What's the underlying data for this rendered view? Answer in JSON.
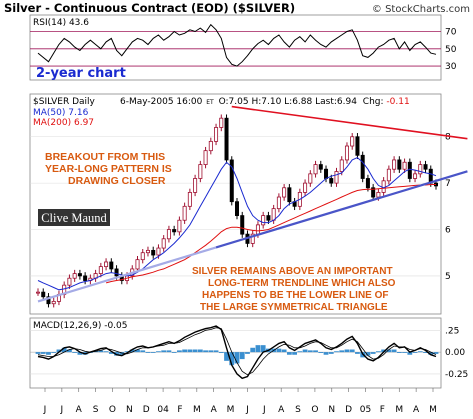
{
  "chart_data": {
    "type": "line",
    "title": "Silver - Continuous Contract (EOD) ($SILVER)",
    "watermark": "© StockCharts.com",
    "period_label": "2-year chart",
    "price_panel": {
      "symbol_label": "$SILVER Daily",
      "date": "6-May-2005 16:00",
      "unit": "ET",
      "ohlc": "O:7.05 H:7.10 L:6.88 Last:6.94",
      "chg_label": "Chg:",
      "chg_value": "-0.11",
      "ma50_label": "MA(50) 7.16",
      "ma200_label": "MA(200) 6.97",
      "yticks": [
        5,
        6,
        7,
        8
      ],
      "ylim": [
        4.2,
        8.9
      ],
      "closes": [
        4.65,
        4.55,
        4.4,
        4.45,
        4.6,
        4.8,
        4.95,
        5.05,
        5.0,
        4.9,
        4.95,
        5.05,
        5.2,
        5.3,
        5.15,
        5.0,
        4.9,
        5.0,
        5.15,
        5.35,
        5.5,
        5.55,
        5.45,
        5.6,
        5.8,
        6.0,
        5.95,
        6.2,
        6.5,
        6.8,
        7.1,
        7.4,
        7.7,
        7.9,
        8.2,
        8.4,
        7.5,
        6.6,
        6.3,
        5.9,
        5.7,
        5.9,
        6.1,
        6.3,
        6.2,
        6.45,
        6.7,
        6.9,
        6.6,
        6.5,
        6.8,
        7.0,
        7.2,
        7.4,
        7.3,
        7.1,
        7.0,
        7.25,
        7.5,
        7.8,
        8.0,
        7.6,
        7.1,
        6.9,
        6.7,
        6.8,
        7.05,
        7.3,
        7.5,
        7.3,
        7.45,
        7.1,
        7.2,
        7.4,
        7.3,
        7.0,
        6.94
      ],
      "ma50": [
        4.9,
        4.85,
        4.8,
        4.75,
        4.7,
        4.72,
        4.75,
        4.8,
        4.85,
        4.88,
        4.9,
        4.95,
        5.0,
        5.05,
        5.07,
        5.05,
        5.02,
        5.0,
        5.02,
        5.08,
        5.15,
        5.25,
        5.35,
        5.42,
        5.5,
        5.6,
        5.7,
        5.82,
        5.95,
        6.1,
        6.3,
        6.5,
        6.7,
        6.9,
        7.1,
        7.3,
        7.45,
        7.35,
        7.1,
        6.8,
        6.5,
        6.3,
        6.2,
        6.15,
        6.15,
        6.2,
        6.3,
        6.45,
        6.55,
        6.6,
        6.65,
        6.72,
        6.8,
        6.9,
        7.0,
        7.1,
        7.15,
        7.18,
        7.22,
        7.35,
        7.5,
        7.55,
        7.45,
        7.3,
        7.1,
        6.95,
        6.9,
        6.95,
        7.05,
        7.15,
        7.25,
        7.3,
        7.28,
        7.25,
        7.22,
        7.2,
        7.16
      ],
      "ma200": [
        null,
        null,
        null,
        null,
        null,
        null,
        null,
        null,
        null,
        null,
        null,
        null,
        null,
        4.85,
        4.88,
        4.9,
        4.92,
        4.95,
        4.98,
        5.0,
        5.02,
        5.05,
        5.08,
        5.12,
        5.15,
        5.2,
        5.25,
        5.3,
        5.35,
        5.42,
        5.5,
        5.58,
        5.66,
        5.75,
        5.85,
        5.95,
        6.02,
        6.05,
        6.05,
        6.03,
        6.0,
        5.98,
        5.97,
        5.98,
        6.0,
        6.05,
        6.1,
        6.15,
        6.2,
        6.25,
        6.3,
        6.35,
        6.4,
        6.45,
        6.5,
        6.55,
        6.6,
        6.65,
        6.7,
        6.75,
        6.8,
        6.84,
        6.86,
        6.87,
        6.87,
        6.88,
        6.89,
        6.9,
        6.91,
        6.92,
        6.93,
        6.94,
        6.95,
        6.96,
        6.96,
        6.97,
        6.97
      ],
      "trend_lower": [
        [
          0,
          4.45
        ],
        [
          76,
          7.05
        ]
      ],
      "trend_lower_light_end": 34,
      "trend_upper": [
        [
          37,
          8.65
        ],
        [
          76,
          8.05
        ]
      ],
      "annotations": [
        [
          "BREAKOUT FROM THIS",
          "YEAR-LONG PATTERN IS",
          "DRAWING CLOSER"
        ],
        [
          "SILVER REMAINS ABOVE AN IMPORTANT",
          "LONG-TERM TRENDLINE WHICH ALSO",
          "HAPPENS TO BE THE LOWER LINE OF",
          "THE LARGE SYMMETRICAL TRIANGLE"
        ]
      ],
      "signature": "Clive Maund"
    },
    "rsi_panel": {
      "label": "RSI(14) 43.6",
      "yticks": [
        30,
        50,
        70
      ],
      "ylim": [
        15,
        88
      ],
      "values": [
        45,
        40,
        35,
        45,
        55,
        62,
        58,
        52,
        48,
        55,
        60,
        55,
        50,
        58,
        62,
        48,
        42,
        50,
        58,
        62,
        60,
        55,
        62,
        66,
        60,
        64,
        70,
        66,
        68,
        72,
        70,
        74,
        69,
        78,
        72,
        62,
        40,
        32,
        30,
        35,
        42,
        50,
        56,
        60,
        55,
        62,
        66,
        58,
        52,
        60,
        64,
        58,
        66,
        60,
        55,
        52,
        58,
        62,
        66,
        70,
        72,
        60,
        42,
        40,
        45,
        52,
        55,
        60,
        62,
        50,
        58,
        48,
        55,
        58,
        52,
        45,
        43.6
      ]
    },
    "macd_panel": {
      "label": "MACD(12,26,9) -0.05",
      "yticks": [
        ".25",
        "0.00",
        "-0.25"
      ],
      "ylim": [
        -0.4,
        0.38
      ],
      "macd": [
        -0.05,
        -0.06,
        -0.08,
        -0.05,
        0.0,
        0.05,
        0.06,
        0.04,
        0.0,
        -0.02,
        0.0,
        0.02,
        0.04,
        0.05,
        0.01,
        -0.03,
        -0.04,
        -0.01,
        0.03,
        0.06,
        0.07,
        0.05,
        0.06,
        0.08,
        0.1,
        0.12,
        0.1,
        0.13,
        0.17,
        0.2,
        0.23,
        0.25,
        0.27,
        0.28,
        0.3,
        0.26,
        0.05,
        -0.15,
        -0.25,
        -0.3,
        -0.28,
        -0.18,
        -0.08,
        0.0,
        0.02,
        0.06,
        0.1,
        0.12,
        0.05,
        0.02,
        0.06,
        0.1,
        0.12,
        0.14,
        0.1,
        0.05,
        0.03,
        0.06,
        0.1,
        0.15,
        0.18,
        0.1,
        -0.02,
        -0.08,
        -0.1,
        -0.06,
        0.0,
        0.06,
        0.1,
        0.05,
        0.06,
        0.0,
        0.02,
        0.05,
        0.02,
        -0.03,
        -0.05
      ],
      "signal": [
        -0.03,
        -0.04,
        -0.05,
        -0.05,
        -0.03,
        0.0,
        0.03,
        0.04,
        0.03,
        0.01,
        0.0,
        0.01,
        0.02,
        0.04,
        0.03,
        0.01,
        -0.01,
        -0.02,
        0.0,
        0.03,
        0.05,
        0.05,
        0.06,
        0.07,
        0.08,
        0.1,
        0.1,
        0.11,
        0.14,
        0.17,
        0.2,
        0.22,
        0.25,
        0.26,
        0.28,
        0.27,
        0.15,
        0.0,
        -0.12,
        -0.22,
        -0.26,
        -0.23,
        -0.16,
        -0.08,
        -0.02,
        0.02,
        0.06,
        0.09,
        0.08,
        0.05,
        0.05,
        0.07,
        0.1,
        0.12,
        0.11,
        0.08,
        0.05,
        0.05,
        0.08,
        0.12,
        0.15,
        0.12,
        0.04,
        -0.04,
        -0.08,
        -0.07,
        -0.03,
        0.03,
        0.07,
        0.06,
        0.06,
        0.03,
        0.02,
        0.04,
        0.03,
        0.0,
        -0.03
      ]
    },
    "x_labels": [
      "J",
      "J",
      "A",
      "S",
      "O",
      "N",
      "D",
      "04",
      "F",
      "M",
      "A",
      "M",
      "J",
      "J",
      "A",
      "S",
      "O",
      "N",
      "D",
      "05",
      "F",
      "M",
      "A",
      "M"
    ],
    "colors": {
      "price": "#000000",
      "up_candle": "#a01030",
      "ma50": "#1a2ad0",
      "ma200": "#e01010",
      "trend_lower": "#4a55c8",
      "trend_lower_light": "#a5abe6",
      "trend_upper": "#e01020",
      "annotation": "#d85a10",
      "period_label": "#1a2ad0",
      "rsi_band": "#a0185a",
      "macd_hist": "#3a8fd0",
      "panel_bg": "#ffffff",
      "chg_negative": "#e01010"
    }
  }
}
